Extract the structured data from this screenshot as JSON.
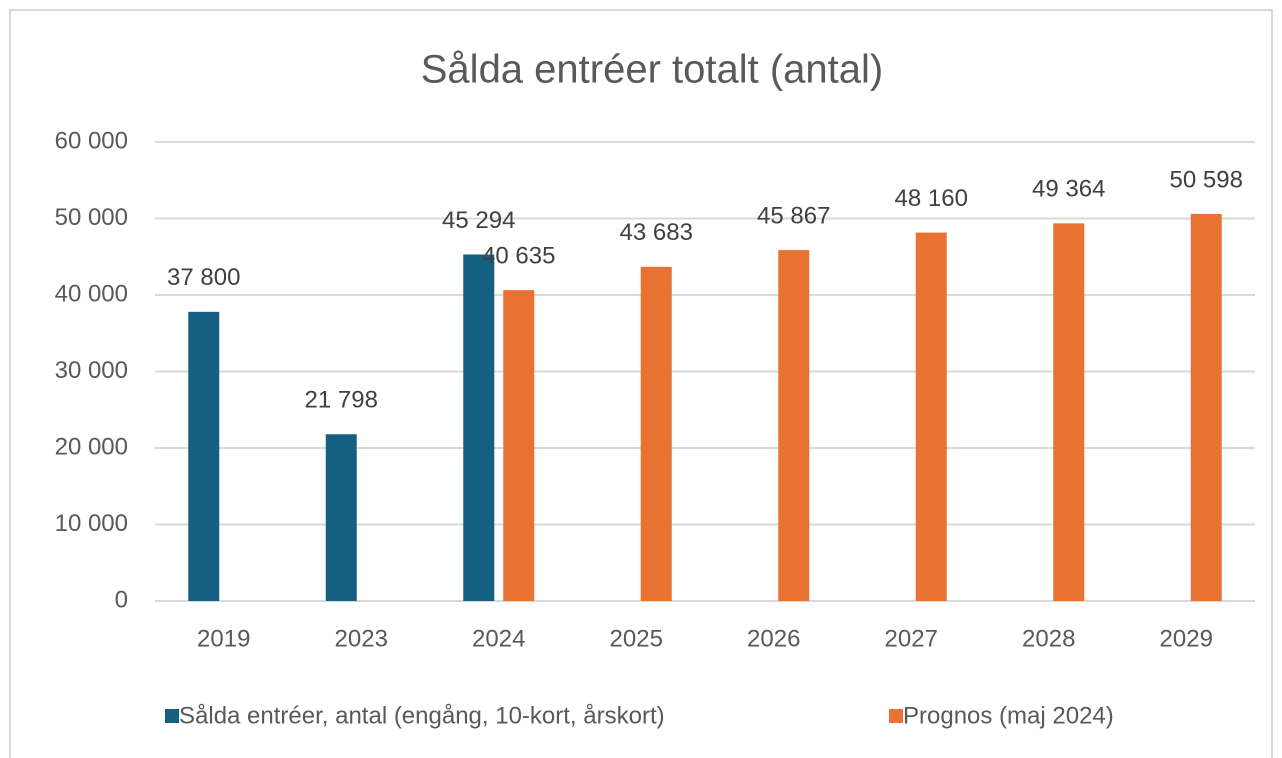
{
  "chart_data": {
    "type": "bar",
    "title": "Sålda entréer totalt (antal)",
    "categories": [
      "2019",
      "2023",
      "2024",
      "2025",
      "2026",
      "2027",
      "2028",
      "2029"
    ],
    "series": [
      {
        "name": "Sålda entréer, antal (engång, 10-kort, årskort)",
        "color": "#156082",
        "values": [
          37800,
          21798,
          45294,
          null,
          null,
          null,
          null,
          null
        ],
        "value_labels": [
          "37 800",
          "21 798",
          "45 294",
          null,
          null,
          null,
          null,
          null
        ]
      },
      {
        "name": "Prognos (maj 2024)",
        "color": "#e97132",
        "values": [
          null,
          null,
          40635,
          43683,
          45867,
          48160,
          49364,
          50598
        ],
        "value_labels": [
          null,
          null,
          "40 635",
          "43 683",
          "45 867",
          "48 160",
          "49 364",
          "50 598"
        ]
      }
    ],
    "ylim": [
      0,
      60000
    ],
    "yticks": [
      0,
      {
        "value": 10000,
        "label": "10 000"
      },
      {
        "value": 20000,
        "label": "20 000"
      },
      {
        "value": 30000,
        "label": "30 000"
      },
      {
        "value": 40000,
        "label": "40 000"
      },
      {
        "value": 50000,
        "label": "50 000"
      },
      {
        "value": 60000,
        "label": "60 000"
      }
    ],
    "grid": true,
    "legend": "bottom"
  }
}
